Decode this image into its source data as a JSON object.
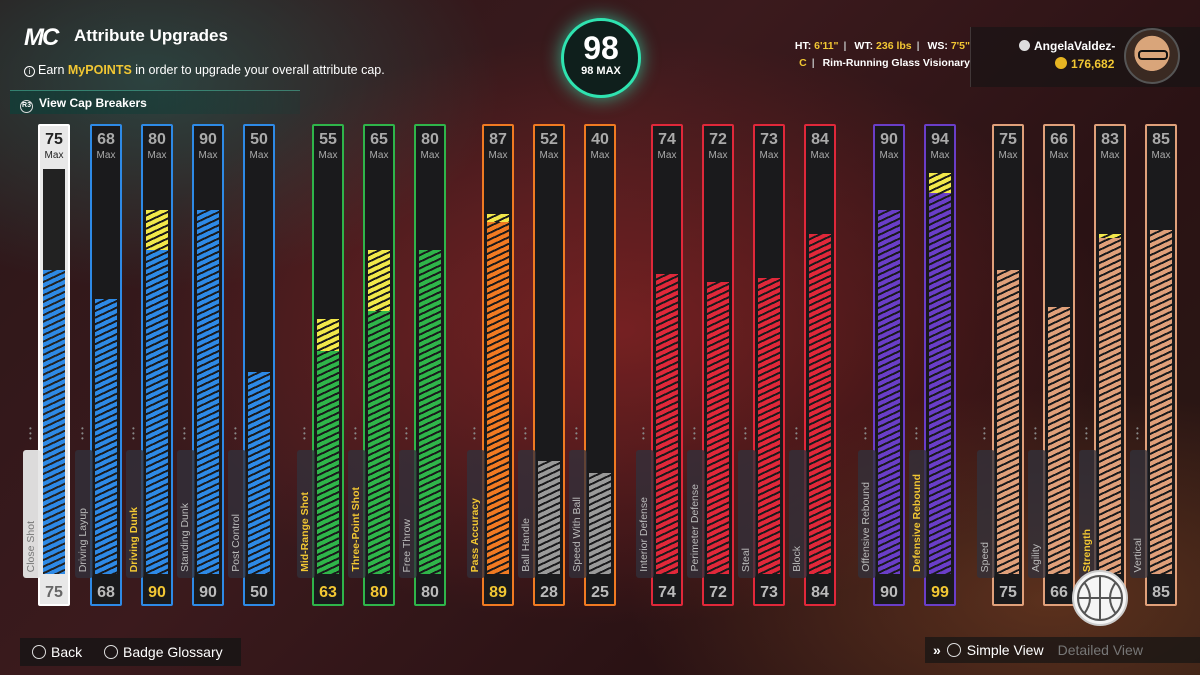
{
  "header": {
    "logo": "MC",
    "title": "Attribute Upgrades",
    "subtitle_pre": "Earn ",
    "subtitle_hl": "MyPOINTS",
    "subtitle_post": " in order to upgrade your overall attribute cap.",
    "cap_breakers": "View Cap Breakers"
  },
  "overall": {
    "value": "98",
    "max": "98 MAX"
  },
  "player": {
    "ht_label": "HT:",
    "ht": "6'11\"",
    "wt_label": "WT:",
    "wt": "236 lbs",
    "ws_label": "WS:",
    "ws": "7'5\"",
    "position": "C",
    "archetype": "Rim-Running Glass Visionary",
    "name": "AngelaValdez-",
    "vc": "176,682"
  },
  "attributes": [
    {
      "label": "Close Shot",
      "max": "75",
      "cur": "75",
      "v": 75,
      "boost": 0,
      "color": "#2e8ae6",
      "selected": true
    },
    {
      "label": "Driving Layup",
      "max": "68",
      "cur": "68",
      "v": 68,
      "boost": 0,
      "color": "#2e8ae6"
    },
    {
      "label": "Driving Dunk",
      "max": "80",
      "cur": "90",
      "v": 80,
      "boost": 10,
      "color": "#2e8ae6",
      "up": true
    },
    {
      "label": "Standing Dunk",
      "max": "90",
      "cur": "90",
      "v": 90,
      "boost": 0,
      "color": "#2e8ae6"
    },
    {
      "label": "Post Control",
      "max": "50",
      "cur": "50",
      "v": 50,
      "boost": 0,
      "color": "#2e8ae6"
    },
    {
      "label": "Mid-Range Shot",
      "max": "55",
      "cur": "63",
      "v": 55,
      "boost": 8,
      "color": "#2fb54a",
      "up": true
    },
    {
      "label": "Three-Point Shot",
      "max": "65",
      "cur": "80",
      "v": 65,
      "boost": 15,
      "color": "#2fb54a",
      "up": true
    },
    {
      "label": "Free Throw",
      "max": "80",
      "cur": "80",
      "v": 80,
      "boost": 0,
      "color": "#2fb54a"
    },
    {
      "label": "Pass Accuracy",
      "max": "87",
      "cur": "89",
      "v": 87,
      "boost": 2,
      "color": "#f07a22",
      "up": true
    },
    {
      "label": "Ball Handle",
      "max": "52",
      "cur": "28",
      "v": 28,
      "boost": 0,
      "color": "#9a9a9a"
    },
    {
      "label": "Speed With Ball",
      "max": "40",
      "cur": "25",
      "v": 25,
      "boost": 0,
      "color": "#9a9a9a"
    },
    {
      "label": "Interior Defense",
      "max": "74",
      "cur": "74",
      "v": 74,
      "boost": 0,
      "color": "#e0283a"
    },
    {
      "label": "Perimeter Defense",
      "max": "72",
      "cur": "72",
      "v": 72,
      "boost": 0,
      "color": "#e0283a"
    },
    {
      "label": "Steal",
      "max": "73",
      "cur": "73",
      "v": 73,
      "boost": 0,
      "color": "#e0283a"
    },
    {
      "label": "Block",
      "max": "84",
      "cur": "84",
      "v": 84,
      "boost": 0,
      "color": "#e0283a"
    },
    {
      "label": "Offensive Rebound",
      "max": "90",
      "cur": "90",
      "v": 90,
      "boost": 0,
      "color": "#6a3ec8"
    },
    {
      "label": "Defensive Rebound",
      "max": "94",
      "cur": "99",
      "v": 94,
      "boost": 5,
      "color": "#6a3ec8",
      "up": true
    },
    {
      "label": "Speed",
      "max": "75",
      "cur": "75",
      "v": 75,
      "boost": 0,
      "color": "#e0a07a"
    },
    {
      "label": "Agility",
      "max": "66",
      "cur": "66",
      "v": 66,
      "boost": 0,
      "color": "#e0a07a"
    },
    {
      "label": "Strength",
      "max": "83",
      "cur": "84",
      "v": 83,
      "boost": 1,
      "color": "#e0a07a",
      "up": true
    },
    {
      "label": "Vertical",
      "max": "85",
      "cur": "85",
      "v": 85,
      "boost": 0,
      "color": "#e0a07a"
    }
  ],
  "max_label": "Max",
  "footer": {
    "back": "Back",
    "glossary": "Badge Glossary",
    "simple": "Simple View",
    "detailed": "Detailed View"
  }
}
